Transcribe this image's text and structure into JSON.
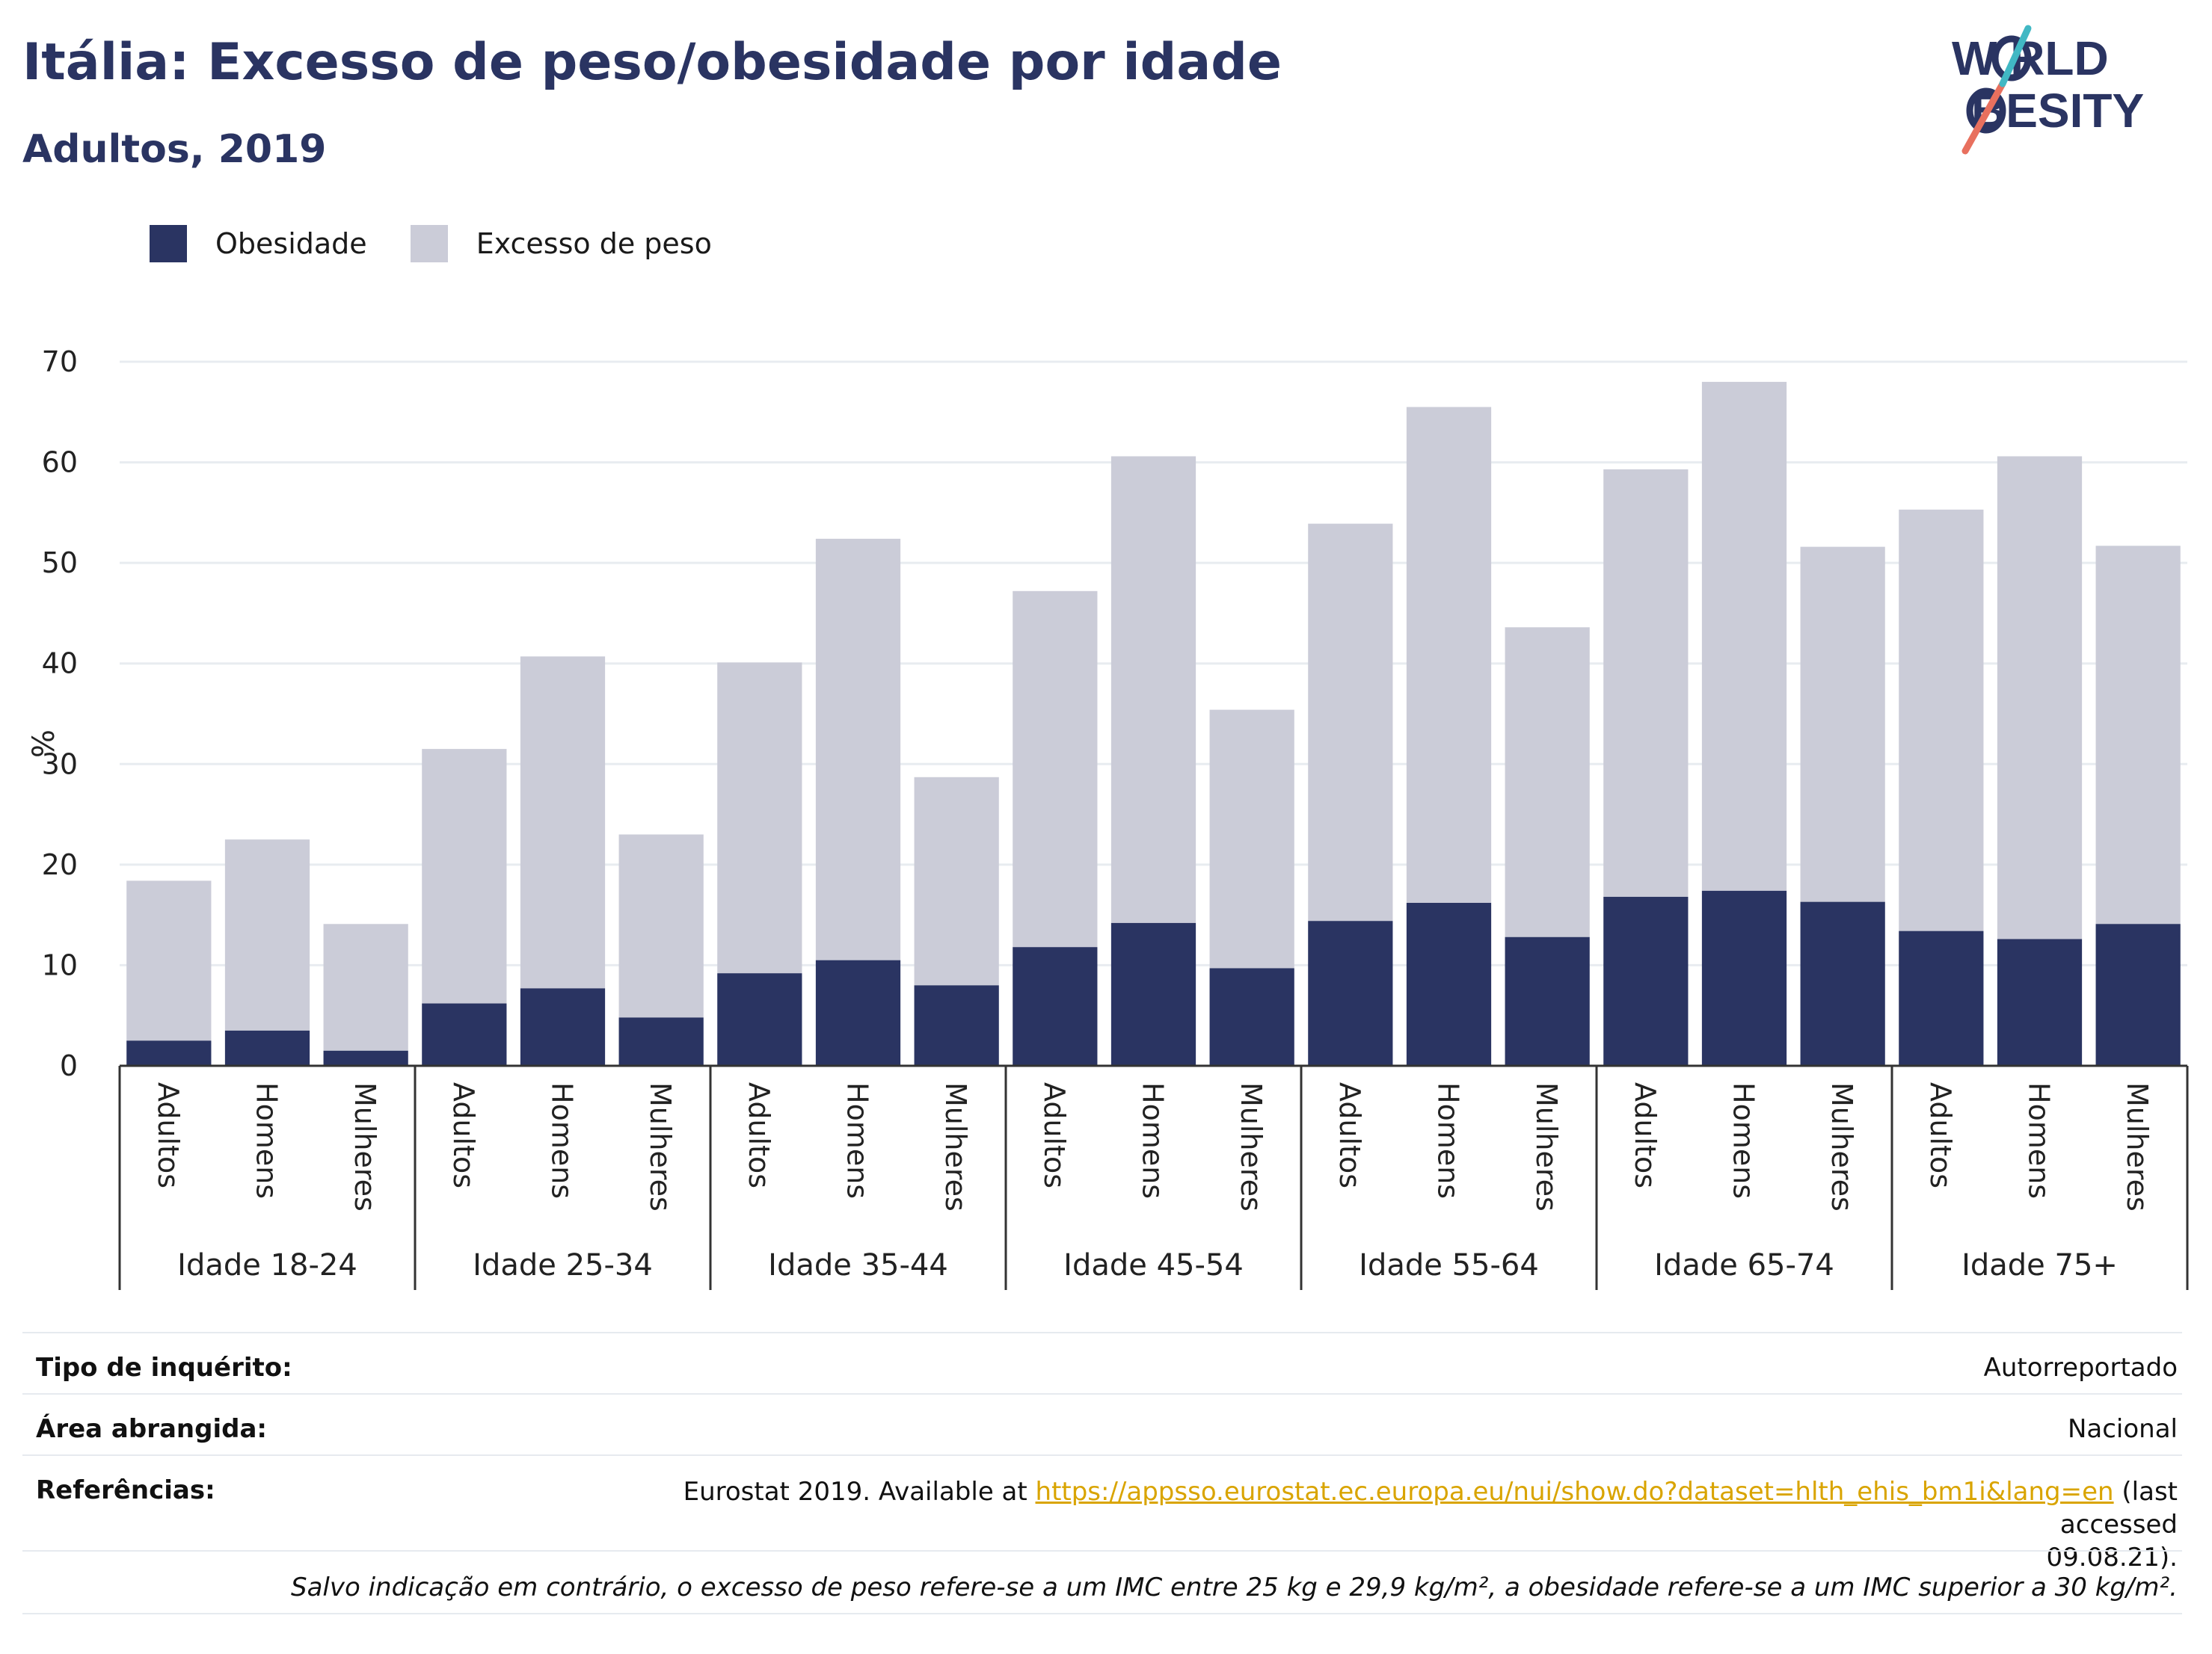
{
  "header": {
    "title": "Itália: Excesso de peso/obesidade por idade",
    "subtitle": "Adultos, 2019"
  },
  "logo": {
    "line1": "W RLD",
    "line2": "BESITY",
    "accent_colors": [
      "#e8705e",
      "#41b8c4"
    ]
  },
  "colors": {
    "obesity": "#2a3462",
    "overweight": "#cbccd8",
    "axis": "#333333",
    "grid": "#e8ecf0",
    "link": "#d9a400"
  },
  "chart_data": {
    "type": "bar",
    "stacked": true,
    "ylabel": "%",
    "ylim": [
      0,
      70
    ],
    "yticks": [
      0,
      10,
      20,
      30,
      40,
      50,
      60,
      70
    ],
    "grid": true,
    "legend_position": "top-left",
    "groups": [
      "Idade 18-24",
      "Idade 25-34",
      "Idade 35-44",
      "Idade 45-54",
      "Idade 55-64",
      "Idade 65-74",
      "Idade 75+"
    ],
    "subcategories": [
      "Adultos",
      "Homens",
      "Mulheres"
    ],
    "series": [
      {
        "name": "Obesidade",
        "values": [
          2.5,
          3.5,
          1.5,
          6.2,
          7.7,
          4.8,
          9.2,
          10.5,
          8.0,
          11.8,
          14.2,
          9.7,
          14.4,
          16.2,
          12.8,
          16.8,
          17.4,
          16.3,
          13.4,
          12.6,
          14.1
        ]
      },
      {
        "name": "Excesso de peso",
        "values": [
          15.9,
          19.0,
          12.6,
          25.3,
          33.0,
          18.2,
          30.9,
          41.9,
          20.7,
          35.4,
          46.4,
          25.7,
          39.5,
          49.3,
          30.8,
          42.5,
          50.6,
          35.3,
          41.9,
          48.0,
          37.6
        ]
      }
    ]
  },
  "info": {
    "rows": [
      {
        "label": "Tipo de inquérito:",
        "value": "Autorreportado"
      },
      {
        "label": "Área abrangida:",
        "value": "Nacional"
      }
    ],
    "references": {
      "label": "Referências:",
      "before": "Eurostat 2019. Available at ",
      "link": "https://appsso.eurostat.ec.europa.eu/nui/show.do?dataset=hlth_ehis_bm1i&lang=en",
      "after": " (last accessed",
      "line2": "09.08.21)."
    },
    "note": "Salvo indicação em contrário, o excesso de peso refere-se a um IMC entre 25 kg e 29,9 kg/m², a obesidade refere-se a um IMC superior a 30 kg/m²."
  }
}
